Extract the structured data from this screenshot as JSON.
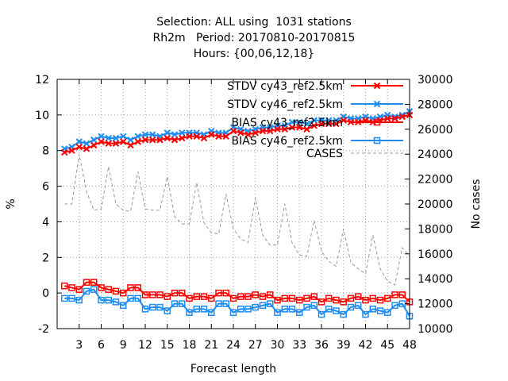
{
  "title_lines": [
    "Selection: ALL using  1031 stations",
    "Rh2m   Period: 20170810-20170815",
    "Hours: {00,06,12,18}"
  ],
  "chart_data": {
    "type": "line",
    "xlabel": "Forecast length",
    "ylabel": "%",
    "y2label": "No cases",
    "xlim": [
      0,
      48
    ],
    "ylim": [
      -2,
      12
    ],
    "y2lim": [
      10000,
      30000
    ],
    "xticks": [
      3,
      6,
      9,
      12,
      15,
      18,
      21,
      24,
      27,
      30,
      33,
      36,
      39,
      42,
      45,
      48
    ],
    "yticks": [
      -2,
      0,
      2,
      4,
      6,
      8,
      10,
      12
    ],
    "y2ticks": [
      10000,
      12000,
      14000,
      16000,
      18000,
      20000,
      22000,
      24000,
      26000,
      28000,
      30000
    ],
    "grid": true,
    "legend_position": "top-right",
    "x": [
      1,
      2,
      3,
      4,
      5,
      6,
      7,
      8,
      9,
      10,
      11,
      12,
      13,
      14,
      15,
      16,
      17,
      18,
      19,
      20,
      21,
      22,
      23,
      24,
      25,
      26,
      27,
      28,
      29,
      30,
      31,
      32,
      33,
      34,
      35,
      36,
      37,
      38,
      39,
      40,
      41,
      42,
      43,
      44,
      45,
      46,
      47,
      48
    ],
    "series": [
      {
        "name": "STDV cy43_ref2.5km",
        "axis": "left",
        "color": "#ff0000",
        "marker": "x",
        "values": [
          7.9,
          8.0,
          8.2,
          8.1,
          8.3,
          8.5,
          8.4,
          8.4,
          8.5,
          8.3,
          8.5,
          8.6,
          8.6,
          8.6,
          8.7,
          8.6,
          8.7,
          8.8,
          8.8,
          8.7,
          8.9,
          8.8,
          8.8,
          9.1,
          9.0,
          8.9,
          9.0,
          9.1,
          9.1,
          9.2,
          9.2,
          9.3,
          9.3,
          9.2,
          9.4,
          9.5,
          9.5,
          9.5,
          9.7,
          9.6,
          9.6,
          9.7,
          9.6,
          9.7,
          9.8,
          9.8,
          9.9,
          10.0
        ]
      },
      {
        "name": "STDV cy46_ref2.5km",
        "axis": "left",
        "color": "#1e8cf0",
        "marker": "x",
        "values": [
          8.1,
          8.2,
          8.5,
          8.4,
          8.6,
          8.8,
          8.7,
          8.7,
          8.8,
          8.6,
          8.8,
          8.9,
          8.9,
          8.8,
          9.0,
          8.9,
          9.0,
          9.0,
          9.0,
          8.9,
          9.1,
          9.0,
          9.0,
          9.3,
          9.2,
          9.1,
          9.2,
          9.3,
          9.3,
          9.4,
          9.4,
          9.6,
          9.6,
          9.5,
          9.7,
          9.7,
          9.7,
          9.7,
          9.9,
          9.8,
          9.8,
          9.9,
          9.8,
          9.9,
          10.0,
          9.9,
          10.0,
          10.2
        ]
      },
      {
        "name": "BIAS cy43_ref2.5km",
        "axis": "left",
        "color": "#ff0000",
        "marker": "square",
        "values": [
          0.4,
          0.3,
          0.2,
          0.6,
          0.6,
          0.3,
          0.2,
          0.1,
          0.0,
          0.3,
          0.3,
          -0.1,
          -0.1,
          -0.1,
          -0.2,
          0.0,
          0.0,
          -0.3,
          -0.2,
          -0.2,
          -0.3,
          0.0,
          0.0,
          -0.3,
          -0.2,
          -0.2,
          -0.1,
          -0.2,
          -0.1,
          -0.4,
          -0.3,
          -0.3,
          -0.4,
          -0.3,
          -0.2,
          -0.5,
          -0.3,
          -0.4,
          -0.5,
          -0.3,
          -0.2,
          -0.4,
          -0.3,
          -0.4,
          -0.3,
          -0.1,
          -0.1,
          -0.5
        ]
      },
      {
        "name": "BIAS cy46_ref2.5km",
        "axis": "left",
        "color": "#1e8cf0",
        "marker": "square",
        "values": [
          -0.3,
          -0.3,
          -0.4,
          0.1,
          0.2,
          -0.4,
          -0.4,
          -0.5,
          -0.7,
          -0.3,
          -0.3,
          -0.9,
          -0.8,
          -0.8,
          -1.0,
          -0.6,
          -0.6,
          -1.1,
          -0.9,
          -0.9,
          -1.1,
          -0.6,
          -0.6,
          -1.1,
          -0.9,
          -0.9,
          -0.8,
          -0.7,
          -0.6,
          -1.1,
          -0.9,
          -0.9,
          -1.1,
          -0.8,
          -0.7,
          -1.2,
          -0.9,
          -1.0,
          -1.2,
          -0.8,
          -0.7,
          -1.2,
          -0.9,
          -1.0,
          -1.1,
          -0.7,
          -0.6,
          -1.3
        ]
      },
      {
        "name": "CASES",
        "axis": "right",
        "color": "#999999",
        "dashed": true,
        "values": [
          20000,
          20000,
          24000,
          21000,
          19500,
          19600,
          23000,
          20000,
          19500,
          19400,
          22600,
          19600,
          19500,
          19500,
          22200,
          19000,
          18400,
          18400,
          21700,
          18500,
          17700,
          17600,
          20800,
          18000,
          17200,
          16900,
          20500,
          17500,
          16700,
          16700,
          20000,
          16900,
          15900,
          15800,
          18700,
          16200,
          15400,
          15000,
          18000,
          15300,
          14800,
          14400,
          17500,
          14800,
          13800,
          13500,
          16500,
          15800
        ]
      }
    ]
  }
}
